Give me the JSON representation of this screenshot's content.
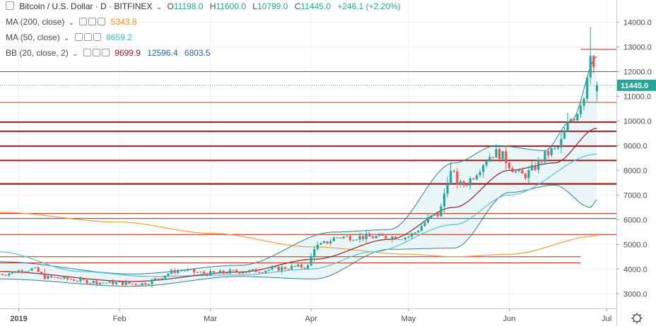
{
  "header": {
    "symbol": "Bitcoin / U.S. Dollar · D · BITFINEX",
    "o_label": "O",
    "o_value": "11198.0",
    "h_label": "H",
    "h_value": "11600.0",
    "l_label": "L",
    "l_value": "10799.0",
    "c_label": "C",
    "c_value": "11445.0",
    "change": "+246.1 (+2.20%)"
  },
  "indicators": [
    {
      "label": "MA (200, close)",
      "values": [
        "5343.8"
      ],
      "colors": [
        "#f08a24"
      ]
    },
    {
      "label": "MA (50, close)",
      "values": [
        "8659.2"
      ],
      "colors": [
        "#3fb8c7"
      ]
    },
    {
      "label": "BB (20, close, 2)",
      "values": [
        "9699.9",
        "12596.4",
        "6803.5"
      ],
      "colors": [
        "#8b1f2b",
        "#2b5fa0",
        "#2b5fa0"
      ]
    }
  ],
  "colors": {
    "up": "#26a69a",
    "down": "#ef5350",
    "hline": "#c0392b",
    "hline_dark": "#9b1b1b",
    "ma200": "#f39c38",
    "ma50": "#4fc3d6",
    "bb_basis": "#8b1f2b",
    "bb_band": "#2e7d9a",
    "bb_fill": "#e4f2f4",
    "price_badge": "#26a69a",
    "axis_text": "#4a4a4a",
    "grid": "#f2f2f2"
  },
  "chart_data": {
    "type": "candlestick",
    "y_ticks": [
      "3000.0",
      "4000.0",
      "5000.0",
      "6000.0",
      "7000.0",
      "8000.0",
      "9000.0",
      "10000.0",
      "11000.0",
      "12000.0",
      "13000.0",
      "14000.0"
    ],
    "x_labels": [
      "2019",
      "Feb",
      "Mar",
      "Apr",
      "May",
      "Jun",
      "Jul"
    ],
    "ylim": [
      2150,
      14900
    ],
    "current_price": "11445.0",
    "grid": true,
    "horizontal_levels": [
      {
        "price": 12900,
        "from": "2019-06-23",
        "color": "hline",
        "width": 1.2
      },
      {
        "price": 12000,
        "color": "hline",
        "width": 1
      },
      {
        "price": 10750,
        "color": "hline",
        "width": 1
      },
      {
        "price": 9950,
        "color": "hline_dark",
        "width": 2
      },
      {
        "price": 9580,
        "color": "hline_dark",
        "width": 2
      },
      {
        "price": 8980,
        "color": "hline_dark",
        "width": 2
      },
      {
        "price": 8400,
        "color": "hline_dark",
        "width": 2
      },
      {
        "price": 7450,
        "color": "hline_dark",
        "width": 2.2
      },
      {
        "price": 6250,
        "color": "hline",
        "width": 1.2
      },
      {
        "price": 6050,
        "color": "hline",
        "width": 1.2
      },
      {
        "price": 5400,
        "color": "hline",
        "width": 1.2
      },
      {
        "price": 4500,
        "to": "2019-06-23",
        "color": "hline",
        "width": 1.2
      },
      {
        "price": 4250,
        "to": "2019-06-23",
        "color": "hline",
        "width": 1.2
      }
    ],
    "close_waypoints": [
      [
        "2018-12-26",
        3800
      ],
      [
        "2019-01-05",
        4000
      ],
      [
        "2019-01-10",
        3650
      ],
      [
        "2019-01-28",
        3450
      ],
      [
        "2019-02-07",
        3400
      ],
      [
        "2019-02-20",
        3950
      ],
      [
        "2019-02-28",
        3820
      ],
      [
        "2019-03-10",
        3900
      ],
      [
        "2019-03-31",
        4100
      ],
      [
        "2019-04-02",
        4900
      ],
      [
        "2019-04-10",
        5300
      ],
      [
        "2019-04-20",
        5300
      ],
      [
        "2019-04-30",
        5300
      ],
      [
        "2019-05-10",
        6200
      ],
      [
        "2019-05-14",
        7900
      ],
      [
        "2019-05-17",
        7400
      ],
      [
        "2019-05-28",
        8700
      ],
      [
        "2019-06-05",
        7800
      ],
      [
        "2019-06-15",
        8800
      ],
      [
        "2019-06-21",
        10200
      ],
      [
        "2019-06-24",
        11000
      ],
      [
        "2019-06-26",
        12900
      ],
      [
        "2019-06-28",
        11445
      ]
    ],
    "ma200_waypoints": [
      [
        "2018-12-26",
        6300
      ],
      [
        "2019-02-01",
        5900
      ],
      [
        "2019-03-01",
        5450
      ],
      [
        "2019-04-01",
        4900
      ],
      [
        "2019-05-01",
        4600
      ],
      [
        "2019-05-15",
        4500
      ],
      [
        "2019-06-01",
        4600
      ],
      [
        "2019-06-28",
        5340
      ]
    ],
    "ma50_waypoints": [
      [
        "2018-12-26",
        4700
      ],
      [
        "2019-01-20",
        3900
      ],
      [
        "2019-02-10",
        3700
      ],
      [
        "2019-03-10",
        3760
      ],
      [
        "2019-04-01",
        4000
      ],
      [
        "2019-04-20",
        4700
      ],
      [
        "2019-05-15",
        5800
      ],
      [
        "2019-06-01",
        7000
      ],
      [
        "2019-06-28",
        8659
      ]
    ],
    "bb_basis_waypoints": [
      [
        "2018-12-26",
        3900
      ],
      [
        "2019-02-05",
        3500
      ],
      [
        "2019-03-10",
        3880
      ],
      [
        "2019-04-02",
        4400
      ],
      [
        "2019-04-25",
        5200
      ],
      [
        "2019-05-15",
        6500
      ],
      [
        "2019-06-01",
        8000
      ],
      [
        "2019-06-15",
        8300
      ],
      [
        "2019-06-28",
        9700
      ]
    ],
    "bb_upper_waypoints": [
      [
        "2018-12-26",
        4300
      ],
      [
        "2019-02-05",
        3800
      ],
      [
        "2019-03-10",
        4150
      ],
      [
        "2019-04-08",
        5500
      ],
      [
        "2019-04-25",
        5600
      ],
      [
        "2019-05-15",
        8300
      ],
      [
        "2019-05-28",
        9000
      ],
      [
        "2019-06-12",
        8800
      ],
      [
        "2019-06-20",
        10000
      ],
      [
        "2019-06-28",
        12600
      ]
    ],
    "bb_lower_waypoints": [
      [
        "2018-12-26",
        3600
      ],
      [
        "2019-02-05",
        3300
      ],
      [
        "2019-03-10",
        3700
      ],
      [
        "2019-04-02",
        3600
      ],
      [
        "2019-04-25",
        4800
      ],
      [
        "2019-05-15",
        4850
      ],
      [
        "2019-06-01",
        7100
      ],
      [
        "2019-06-15",
        7400
      ],
      [
        "2019-06-26",
        6500
      ],
      [
        "2019-06-28",
        6800
      ]
    ]
  }
}
